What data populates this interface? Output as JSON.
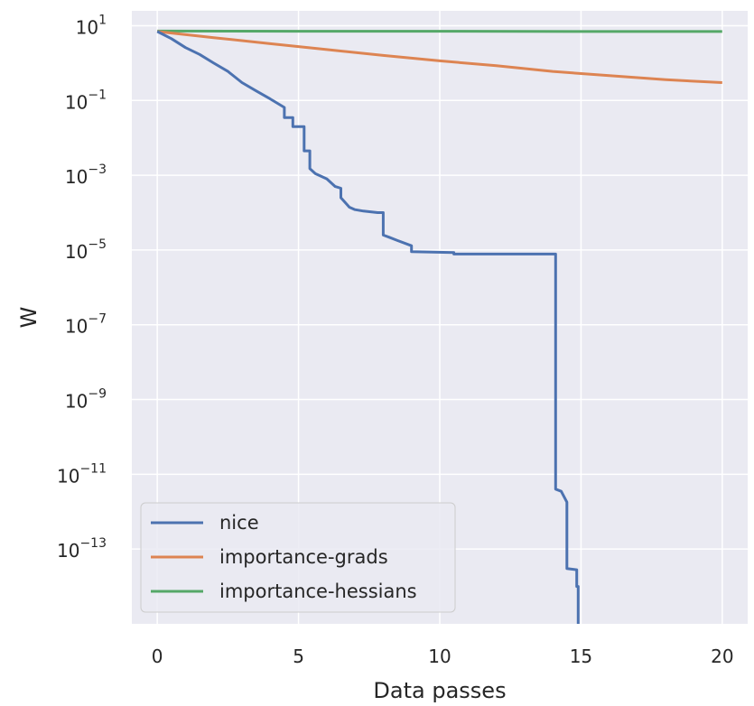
{
  "chart_data": {
    "type": "line",
    "xlabel": "Data passes",
    "ylabel": "W",
    "xlim": [
      -0.9,
      20.9
    ],
    "ylim": [
      1e-15,
      25
    ],
    "y_scale": "log",
    "grid": true,
    "legend_position": "lower-left",
    "background_color": "#eaeaf2",
    "xticks": [
      {
        "value": 0,
        "label": "0"
      },
      {
        "value": 5,
        "label": "5"
      },
      {
        "value": 10,
        "label": "10"
      },
      {
        "value": 15,
        "label": "15"
      },
      {
        "value": 20,
        "label": "20"
      }
    ],
    "yticks": [
      {
        "value": 10,
        "base": "10",
        "exp": "1"
      },
      {
        "value": 0.1,
        "base": "10",
        "exp": "−1"
      },
      {
        "value": 0.001,
        "base": "10",
        "exp": "−3"
      },
      {
        "value": 1e-05,
        "base": "10",
        "exp": "−5"
      },
      {
        "value": 1e-07,
        "base": "10",
        "exp": "−7"
      },
      {
        "value": 1e-09,
        "base": "10",
        "exp": "−9"
      },
      {
        "value": 1e-11,
        "base": "10",
        "exp": "−11"
      },
      {
        "value": 1e-13,
        "base": "10",
        "exp": "−13"
      }
    ],
    "series": [
      {
        "name": "nice",
        "color": "#4c72b0",
        "x": [
          0,
          0.5,
          1,
          1.5,
          2,
          2.5,
          3,
          3.5,
          4,
          4.5,
          4.5,
          4.8,
          4.8,
          5.2,
          5.2,
          5.4,
          5.4,
          5.6,
          6,
          6.3,
          6.5,
          6.5,
          6.8,
          7,
          7.3,
          7.8,
          8,
          8,
          8.2,
          8.5,
          9,
          9,
          10.5,
          10.5,
          14.1,
          14.1,
          14.3,
          14.5,
          14.5,
          14.85,
          14.85,
          14.9,
          14.9
        ],
        "y": [
          7,
          4.5,
          2.6,
          1.7,
          1.0,
          0.6,
          0.3,
          0.18,
          0.11,
          0.065,
          0.035,
          0.035,
          0.02,
          0.02,
          0.0045,
          0.0045,
          0.0015,
          0.0011,
          0.0008,
          0.0005,
          0.00045,
          0.00025,
          0.00014,
          0.00012,
          0.00011,
          0.0001,
          0.0001,
          2.5e-05,
          2.2e-05,
          1.8e-05,
          1.3e-05,
          9e-06,
          8.5e-06,
          7.8e-06,
          7.8e-06,
          4e-12,
          3.5e-12,
          1.8e-12,
          3e-14,
          2.8e-14,
          1e-14,
          1e-14,
          1e-15
        ]
      },
      {
        "name": "importance-grads",
        "color": "#dd8452",
        "x": [
          0,
          2,
          4,
          6,
          8,
          10,
          12,
          14,
          16,
          18,
          20
        ],
        "y": [
          7,
          4.8,
          3.3,
          2.3,
          1.6,
          1.15,
          0.85,
          0.6,
          0.46,
          0.36,
          0.3
        ]
      },
      {
        "name": "importance-hessians",
        "color": "#55a868",
        "x": [
          0,
          5,
          10,
          15,
          20
        ],
        "y": [
          7.2,
          7.1,
          7.1,
          7.0,
          7.0
        ]
      }
    ]
  }
}
